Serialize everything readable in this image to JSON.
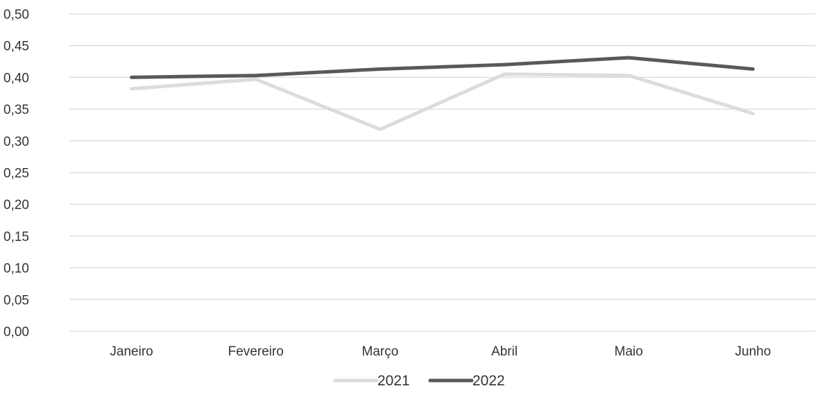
{
  "chart_data": {
    "type": "line",
    "categories": [
      "Janeiro",
      "Fevereiro",
      "Março",
      "Abril",
      "Maio",
      "Junho"
    ],
    "series": [
      {
        "name": "2021",
        "values": [
          0.382,
          0.397,
          0.318,
          0.405,
          0.403,
          0.343
        ],
        "color": "#dcdcdc"
      },
      {
        "name": "2022",
        "values": [
          0.4,
          0.403,
          0.413,
          0.42,
          0.431,
          0.413
        ],
        "color": "#595959"
      }
    ],
    "y_ticks": [
      "0,00",
      "0,05",
      "0,10",
      "0,15",
      "0,20",
      "0,25",
      "0,30",
      "0,35",
      "0,40",
      "0,45",
      "0,50"
    ],
    "ylim": [
      0,
      0.5
    ],
    "ystep": 0.05,
    "grid": true,
    "grid_color": "#d9d9d9",
    "legend_position": "bottom"
  }
}
